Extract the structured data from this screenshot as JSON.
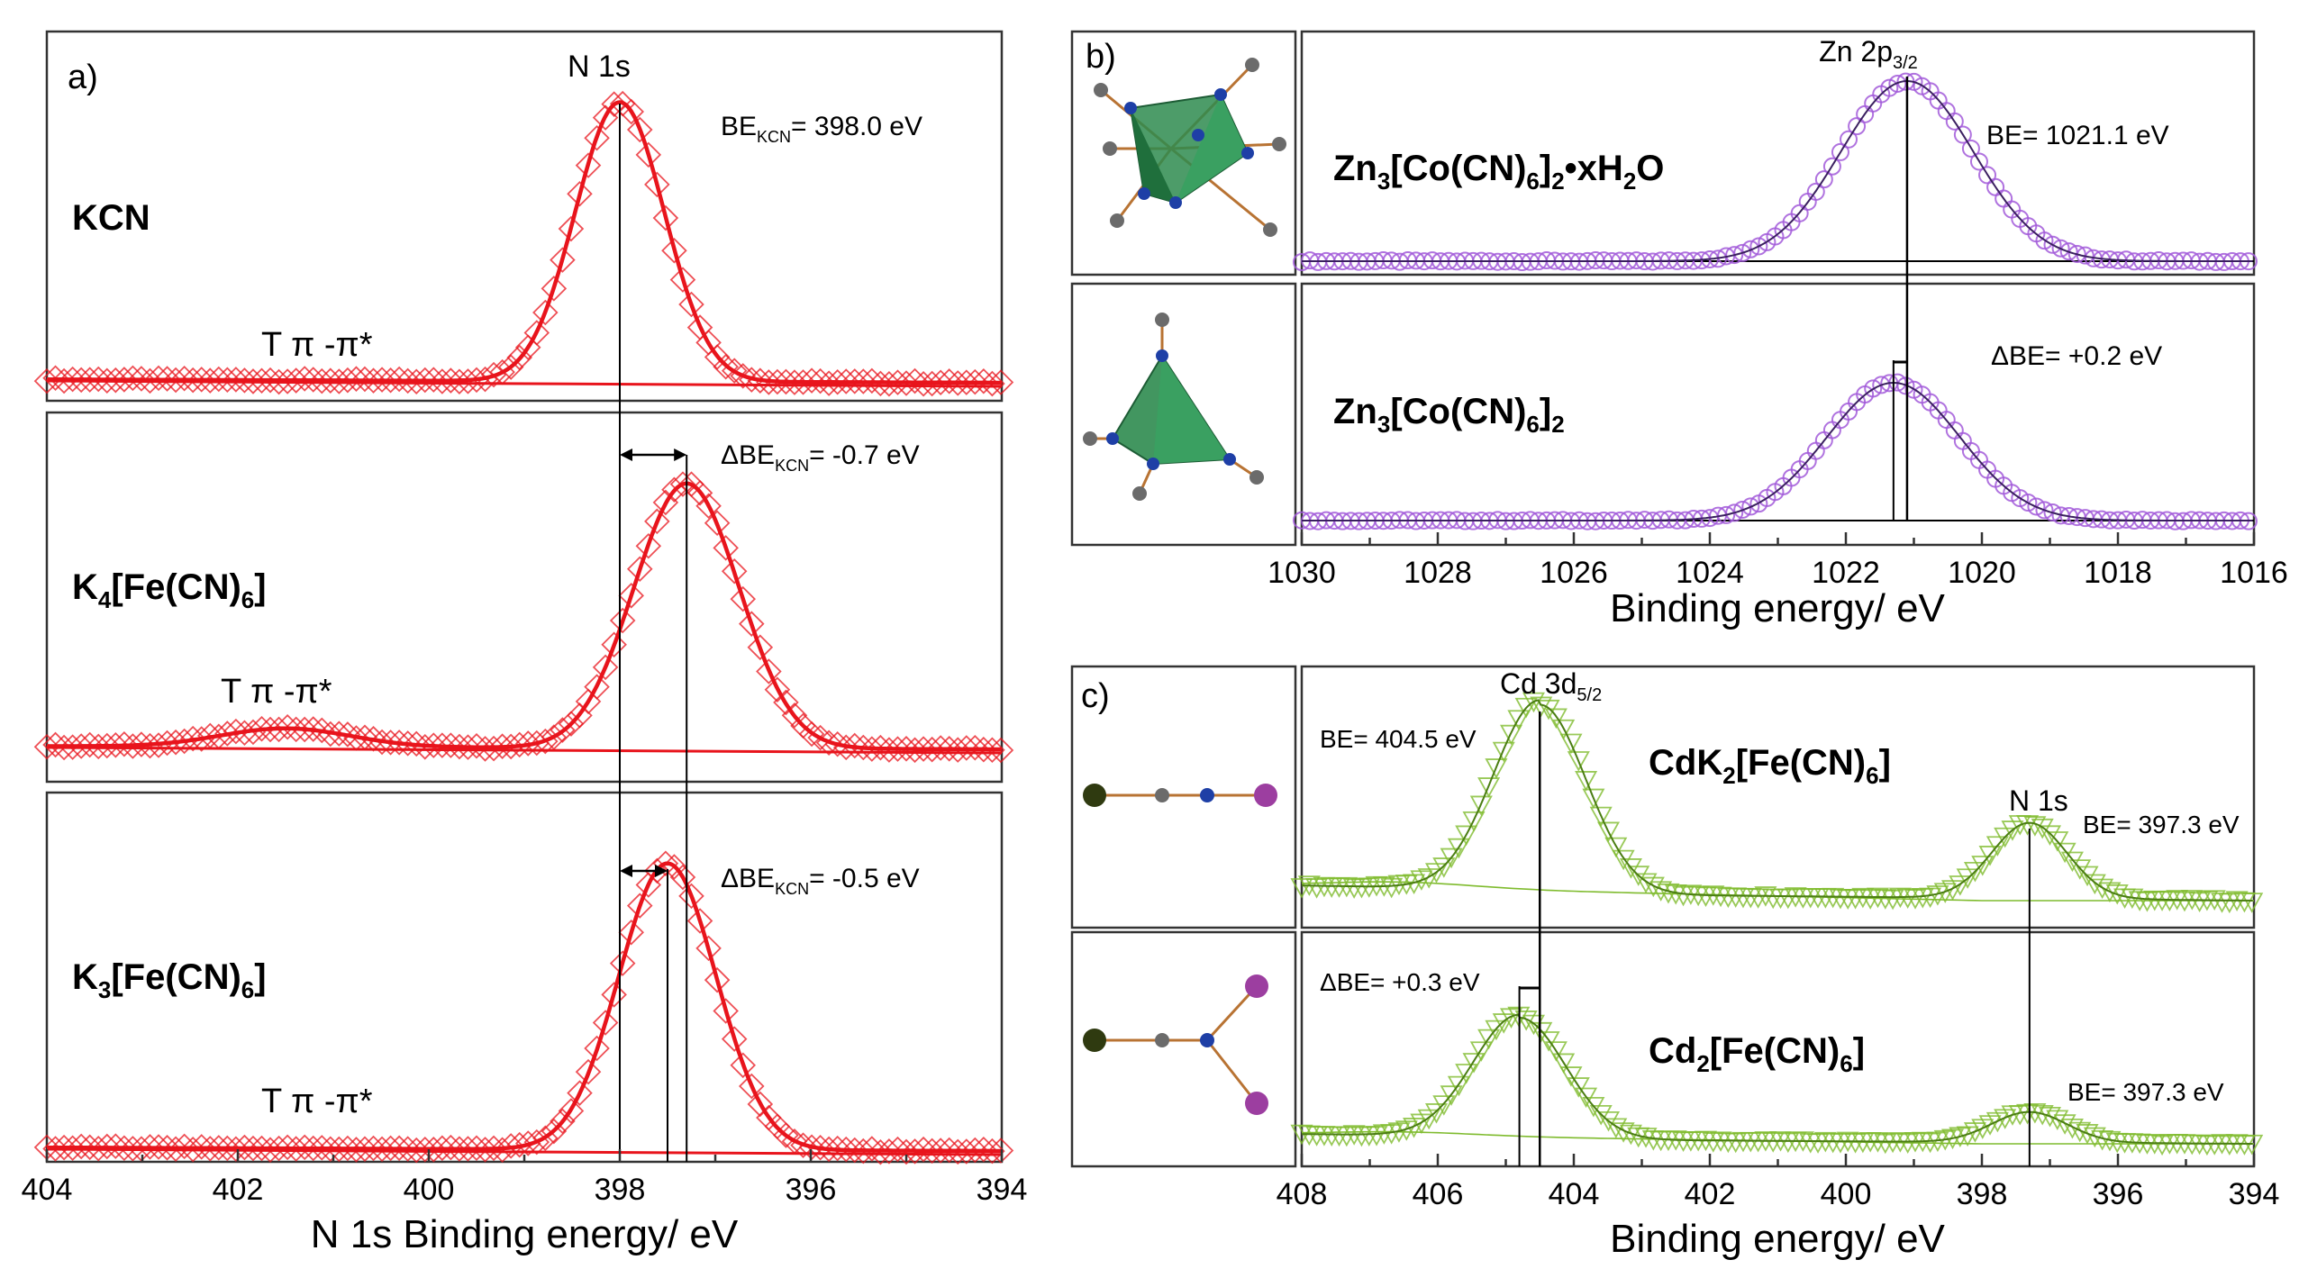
{
  "chart_data": [
    {
      "panel": "a)",
      "type": "line",
      "xlabel": "N 1s Binding energy/ eV",
      "xlim": [
        404,
        394
      ],
      "xticks": [
        404,
        402,
        400,
        398,
        396,
        394
      ],
      "peak_label": "N 1s",
      "series": [
        {
          "compound": "KCN",
          "color": "#e8141c",
          "marker": "diamond",
          "peak_center": 398.0,
          "peak_fwhm": 1.1,
          "satellite_center": 401.5,
          "satellite_amp": 0.0,
          "annotation_main": "BE",
          "annotation_sub": "KCN",
          "annotation_val": "= 398.0 eV",
          "satellite_label": "T π -π*"
        },
        {
          "compound": "K4[Fe(CN)6]",
          "color": "#e8141c",
          "marker": "diamond",
          "peak_center": 397.3,
          "peak_fwhm": 1.3,
          "satellite_center": 401.5,
          "satellite_amp": 0.07,
          "annotation_main": "ΔBE",
          "annotation_sub": "KCN",
          "annotation_val": "= -0.7 eV",
          "satellite_label": "T π -π*"
        },
        {
          "compound": "K3[Fe(CN)6]",
          "color": "#e8141c",
          "marker": "diamond",
          "peak_center": 397.5,
          "peak_fwhm": 1.2,
          "satellite_center": 401.5,
          "satellite_amp": 0.0,
          "annotation_main": "ΔBE",
          "annotation_sub": "KCN",
          "annotation_val": "= -0.5 eV",
          "satellite_label": "T π -π*"
        }
      ]
    },
    {
      "panel": "b)",
      "type": "line",
      "xlabel": "Binding energy/ eV",
      "xlim": [
        1030,
        1016
      ],
      "xticks": [
        1030,
        1028,
        1026,
        1024,
        1022,
        1020,
        1018,
        1016
      ],
      "peak_label_main": "Zn 2p",
      "peak_label_sub": "3/2",
      "series": [
        {
          "compound": "Zn3[Co(CN)6]2·xH2O",
          "color": "#a25bd9",
          "marker": "circle",
          "peak_center": 1021.1,
          "peak_fwhm": 2.3,
          "annotation": "BE= 1021.1 eV"
        },
        {
          "compound": "Zn3[Co(CN)6]2",
          "color": "#a25bd9",
          "marker": "circle",
          "peak_center": 1021.3,
          "peak_fwhm": 2.3,
          "annotation": "ΔBE= +0.2 eV"
        }
      ]
    },
    {
      "panel": "c)",
      "type": "line",
      "xlabel": "Binding energy/ eV",
      "xlim": [
        408,
        394
      ],
      "xticks": [
        408,
        406,
        404,
        402,
        400,
        398,
        396,
        394
      ],
      "peak_label_main": "Cd 3d",
      "peak_label_sub": "5/2",
      "n_label": "N 1s",
      "series": [
        {
          "compound": "CdK2[Fe(CN)6]",
          "color": "#7fbb2e",
          "marker": "triangle",
          "cd_center": 404.5,
          "n_center": 397.3,
          "annotation_cd": "BE= 404.5 eV",
          "annotation_n": "BE= 397.3 eV"
        },
        {
          "compound": "Cd2[Fe(CN)6]",
          "color": "#7fbb2e",
          "marker": "triangle",
          "cd_center": 404.8,
          "n_center": 397.3,
          "annotation_cd": "ΔBE= +0.3 eV",
          "annotation_n": "BE= 397.3 eV"
        }
      ]
    }
  ]
}
